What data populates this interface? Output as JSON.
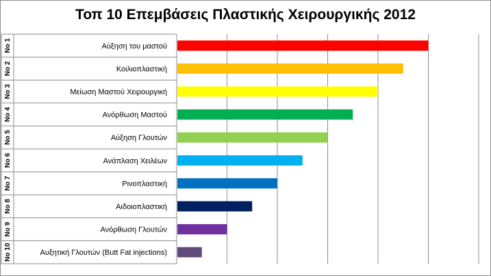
{
  "chart_data": {
    "type": "bar",
    "orientation": "horizontal",
    "title": "Τοπ 10 Επεμβάσεις Πλαστικής Χειρουργικής 2012",
    "ranks": [
      "No 1",
      "No 2",
      "No 3",
      "No 4",
      "No 5",
      "No 6",
      "No 7",
      "No 8",
      "No 9",
      "No 10"
    ],
    "categories": [
      "Αύξηση του μαστού",
      "Κοιλιοπλαστική",
      "Μείωση Μαστού Χειρουργική",
      "Ανόρθωση Μαστού",
      "Αύξηση Γλουτών",
      "Ανάπλαση Χειλέων",
      "Ρινοπλαστική",
      "Αιδοιοπλαστική",
      "Ανόρθωση Γλουτών",
      "Αυξητική Γλουτών  (Butt Fat injections)"
    ],
    "values": [
      10,
      9,
      8,
      7,
      6,
      5,
      4,
      3,
      2,
      1
    ],
    "colors": [
      "#ff0000",
      "#ffc000",
      "#ffff00",
      "#00b050",
      "#92d050",
      "#00b0f0",
      "#0070c0",
      "#002060",
      "#7030a0",
      "#604a7b"
    ],
    "xlim": [
      0,
      12
    ],
    "x_gridlines": true,
    "x_tick_labels_shown": false
  }
}
